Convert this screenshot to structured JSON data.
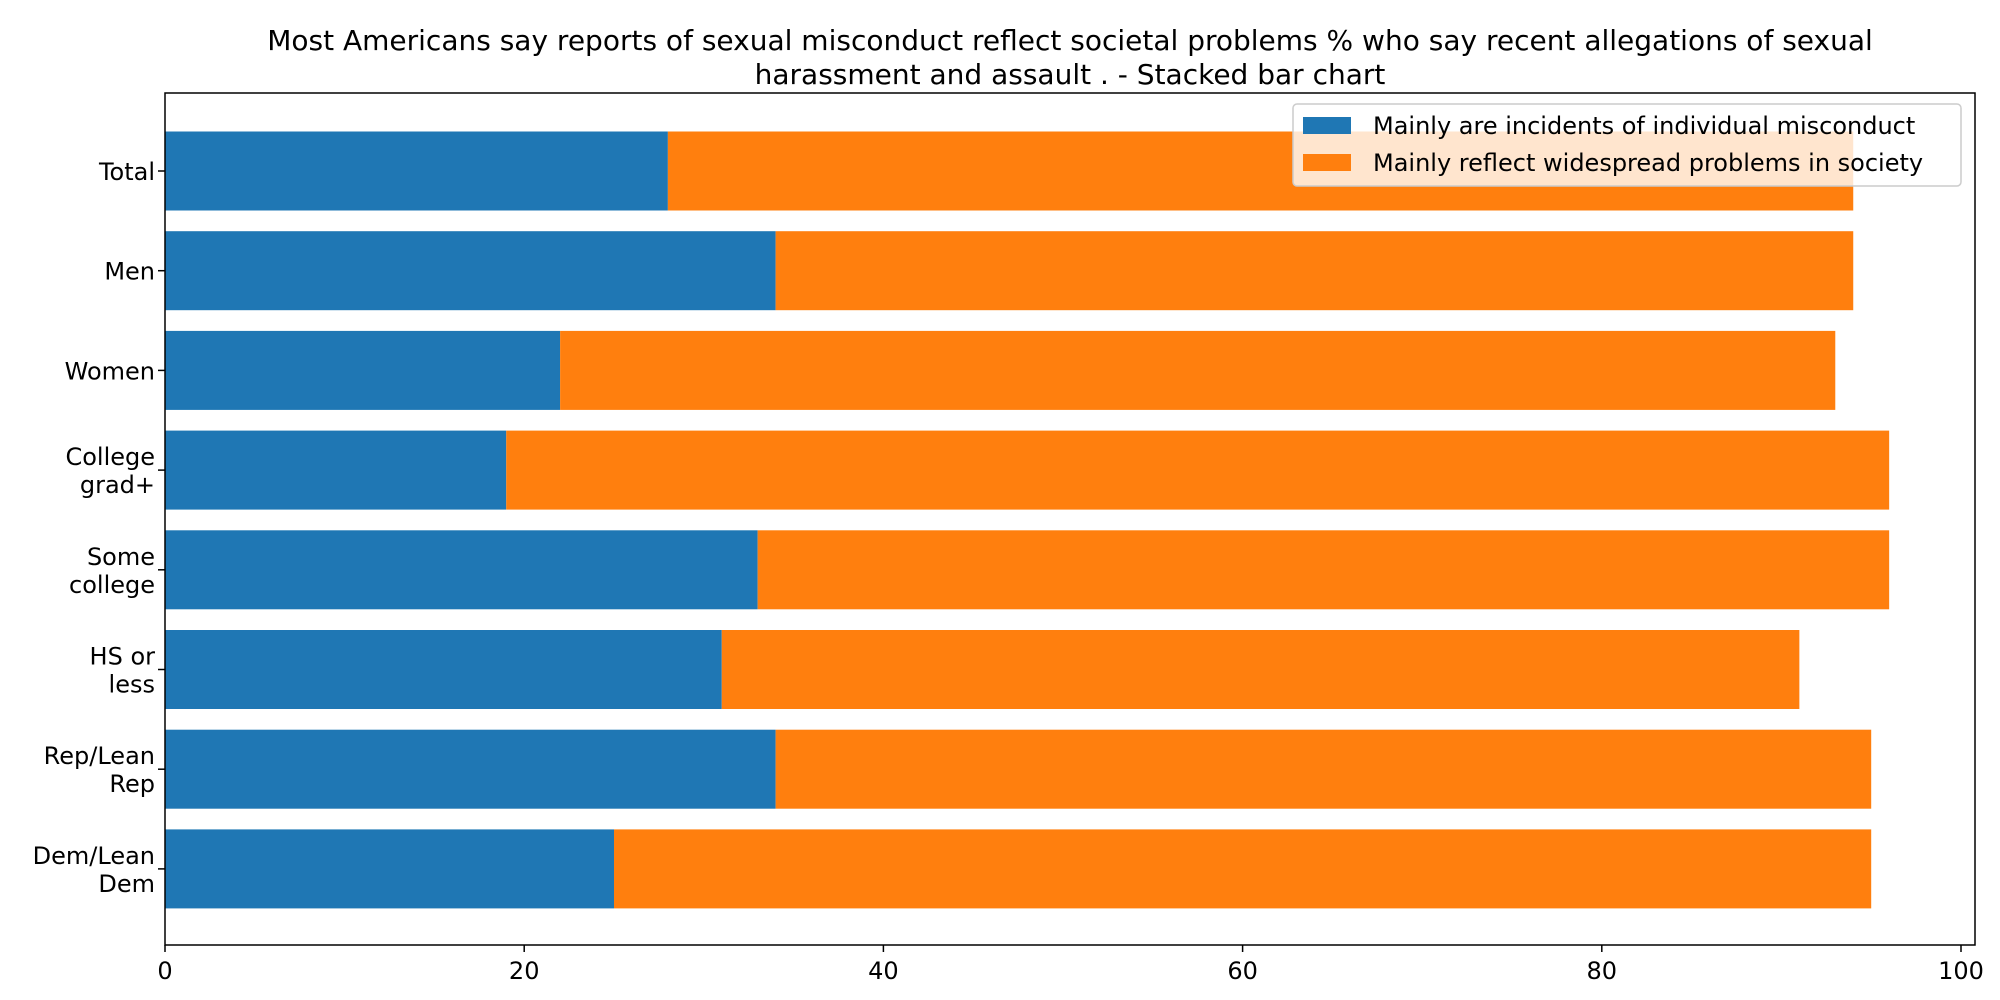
{
  "chart_data": {
    "type": "bar",
    "orientation": "horizontal",
    "stacked": true,
    "title_lines": [
      "Most Americans say reports of sexual misconduct reflect societal problems % who say recent allegations of sexual",
      "harassment and assault .  - Stacked bar chart"
    ],
    "xlabel": "",
    "ylabel": "",
    "xlim": [
      0,
      100
    ],
    "x_ticks": [
      0,
      20,
      40,
      60,
      80,
      100
    ],
    "grid": false,
    "legend_position": "top-right",
    "categories": [
      [
        "Total"
      ],
      [
        "Men"
      ],
      [
        "Women"
      ],
      [
        "College",
        "grad+"
      ],
      [
        "Some",
        "college"
      ],
      [
        "HS or",
        "less"
      ],
      [
        "Rep/Lean",
        "Rep"
      ],
      [
        "Dem/Lean",
        "Dem"
      ]
    ],
    "series": [
      {
        "name": "Mainly are incidents of individual misconduct",
        "color": "#1f77b4",
        "values": [
          28,
          34,
          22,
          19,
          33,
          31,
          34,
          25
        ]
      },
      {
        "name": "Mainly reflect widespread problems in society",
        "color": "#ff7f0e",
        "values": [
          66,
          60,
          71,
          77,
          63,
          60,
          61,
          70
        ]
      }
    ]
  }
}
